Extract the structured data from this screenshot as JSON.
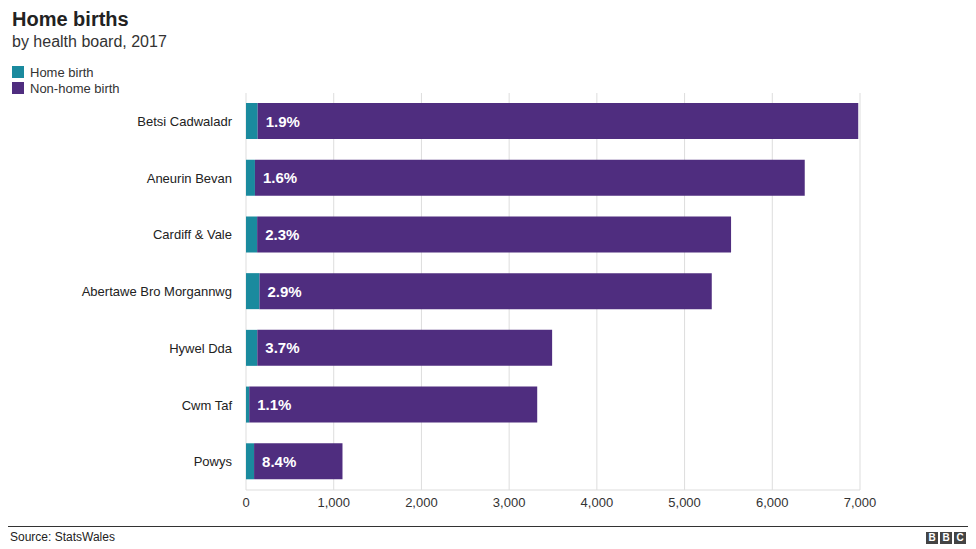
{
  "chart_data": {
    "type": "bar",
    "title": "Home births",
    "subtitle": "by health board, 2017",
    "orientation": "horizontal",
    "stacked": true,
    "legend": "top-left",
    "grid": true,
    "categories": [
      "Betsi Cadwaladr",
      "Aneurin Bevan",
      "Cardiff & Vale",
      "Abertawe Bro Morgannwg",
      "Hywel Dda",
      "Cwm Taf",
      "Powys"
    ],
    "series": [
      {
        "name": "Home birth",
        "color": "#1a8a9e",
        "values": [
          133,
          102,
          127,
          154,
          129,
          37,
          92
        ],
        "share_labels": [
          "1.9%",
          "1.6%",
          "2.3%",
          "2.9%",
          "3.7%",
          "1.1%",
          "8.4%"
        ]
      },
      {
        "name": "Non-home birth",
        "color": "#4f2d7f",
        "values": [
          6847,
          6268,
          5403,
          5156,
          3361,
          3283,
          1008
        ]
      }
    ],
    "xlim": [
      0,
      7000
    ],
    "xticks": [
      0,
      {
        "value": 1000,
        "label": "1,000"
      },
      {
        "value": 2000,
        "label": "2,000"
      },
      {
        "value": 3000,
        "label": "3,000"
      },
      {
        "value": 4000,
        "label": "4,000"
      },
      {
        "value": 5000,
        "label": "5,000"
      },
      {
        "value": 6000,
        "label": "6,000"
      },
      {
        "value": 7000,
        "label": "7,000"
      }
    ],
    "source": "Source: StatsWales",
    "credit": "BBC"
  }
}
